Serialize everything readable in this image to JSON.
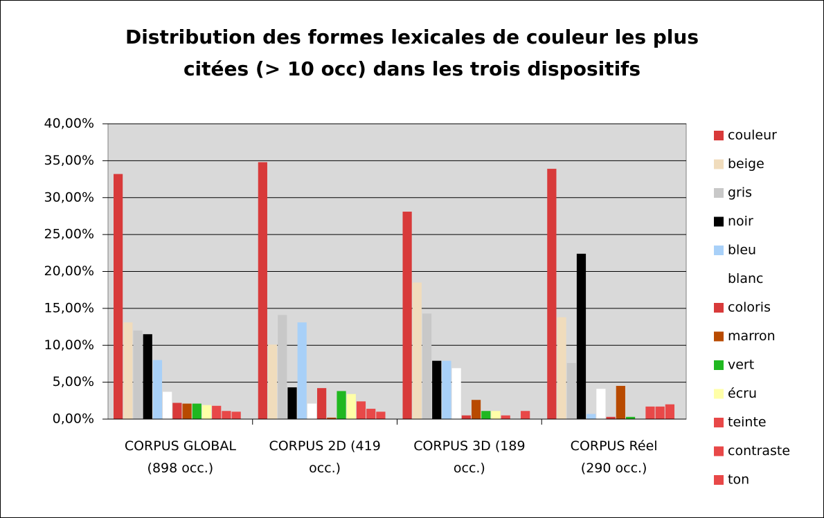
{
  "chart_data": {
    "type": "bar",
    "title": "Distribution des formes lexicales de couleur les plus citées (> 10 occ) dans les trois dispositifs",
    "categories": [
      "CORPUS GLOBAL (898 occ.)",
      "CORPUS 2D (419 occ.)",
      "CORPUS 3D (189 occ.)",
      "CORPUS Réel (290 occ.)"
    ],
    "series": [
      {
        "name": "couleur",
        "color": "#d83a3a",
        "values": [
          33.2,
          34.8,
          28.1,
          33.9
        ]
      },
      {
        "name": "beige",
        "color": "#f0dcbc",
        "values": [
          13.1,
          10.1,
          18.5,
          13.8
        ]
      },
      {
        "name": "gris",
        "color": "#c8c8c8",
        "values": [
          12.0,
          14.1,
          14.3,
          7.6
        ]
      },
      {
        "name": "noir",
        "color": "#000000",
        "values": [
          11.5,
          4.3,
          7.9,
          22.4
        ]
      },
      {
        "name": "bleu",
        "color": "#a8d0f8",
        "values": [
          8.0,
          13.1,
          7.9,
          0.7
        ]
      },
      {
        "name": "blanc",
        "color": "#ffffff",
        "values": [
          3.7,
          2.1,
          6.9,
          4.1
        ]
      },
      {
        "name": "coloris",
        "color": "#d83a3a",
        "values": [
          2.2,
          4.2,
          0.5,
          0.3
        ]
      },
      {
        "name": "marron",
        "color": "#b84a00",
        "values": [
          2.1,
          0.2,
          2.6,
          4.5
        ]
      },
      {
        "name": "vert",
        "color": "#20b820",
        "values": [
          2.1,
          3.8,
          1.1,
          0.3
        ]
      },
      {
        "name": "écru",
        "color": "#ffffa8",
        "values": [
          1.9,
          3.4,
          1.1,
          0
        ]
      },
      {
        "name": "teinte",
        "color": "#e84848",
        "values": [
          1.8,
          2.4,
          0.5,
          1.7
        ]
      },
      {
        "name": "contraste",
        "color": "#e84848",
        "values": [
          1.1,
          1.4,
          0,
          1.7
        ]
      },
      {
        "name": "ton",
        "color": "#e84848",
        "values": [
          1.0,
          1.0,
          1.1,
          2.0
        ]
      }
    ],
    "ylim": [
      0,
      40
    ],
    "yticks": [
      {
        "value": 0,
        "label": "0,00%"
      },
      {
        "value": 5,
        "label": "5,00%"
      },
      {
        "value": 10,
        "label": "10,00%"
      },
      {
        "value": 15,
        "label": "15,00%"
      },
      {
        "value": 20,
        "label": "20,00%"
      },
      {
        "value": 25,
        "label": "25,00%"
      },
      {
        "value": 30,
        "label": "30,00%"
      },
      {
        "value": 35,
        "label": "35,00%"
      },
      {
        "value": 40,
        "label": "40,00%"
      }
    ],
    "grid": true,
    "legend": "right"
  }
}
